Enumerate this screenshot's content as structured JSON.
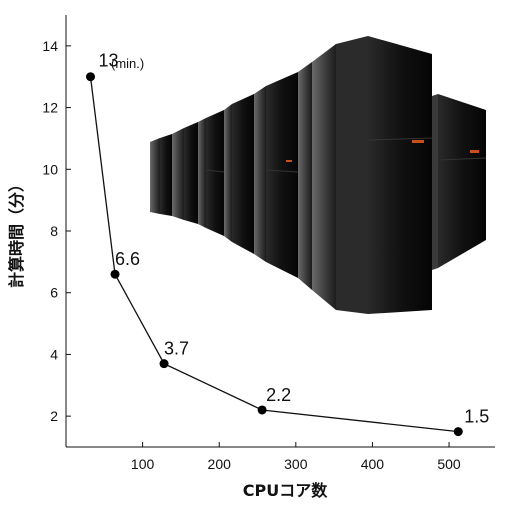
{
  "chart_data": {
    "type": "line",
    "x": [
      32,
      64,
      128,
      256,
      512
    ],
    "y": [
      13,
      6.6,
      3.7,
      2.2,
      1.5
    ],
    "data_labels": [
      "13",
      "6.6",
      "3.7",
      "2.2",
      "1.5"
    ],
    "unit_annotation": "(min.)",
    "xlabel": "CPUコア数",
    "ylabel": "計算時間（分）",
    "xlim": [
      0,
      560
    ],
    "ylim": [
      1,
      15
    ],
    "xticks": [
      100,
      200,
      300,
      400,
      500
    ],
    "yticks": [
      2,
      4,
      6,
      8,
      10,
      12,
      14
    ],
    "grid": false,
    "line_color": "#111111",
    "marker_color": "#000000"
  },
  "image": {
    "description_icon": "supercomputer-racks-image"
  }
}
